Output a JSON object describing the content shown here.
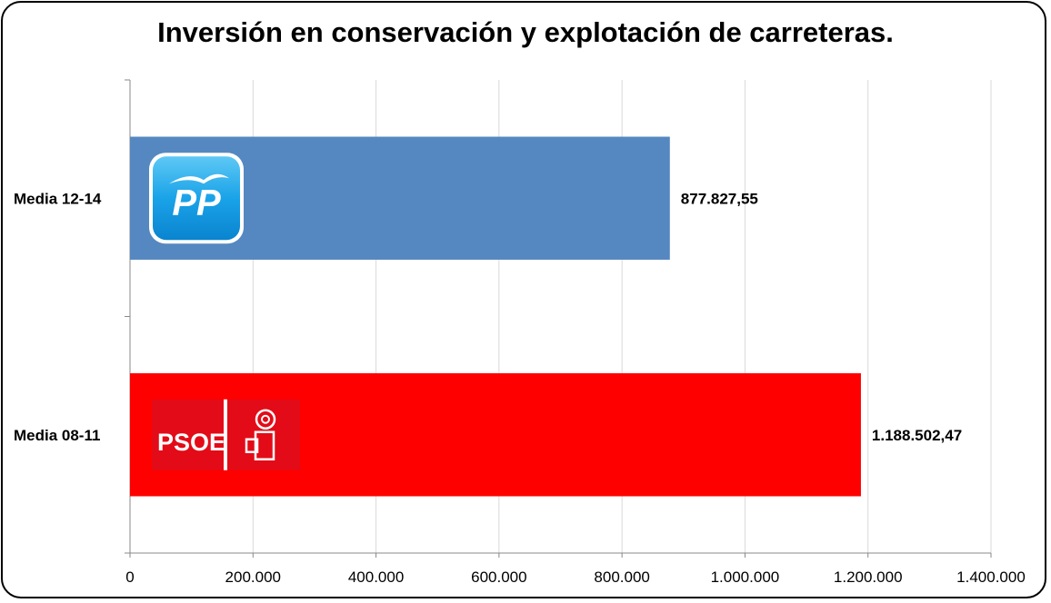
{
  "title": "Inversión en conservación y explotación de carreteras.",
  "chart_data": {
    "type": "bar",
    "orientation": "horizontal",
    "title": "Inversión en conservación y explotación de carreteras.",
    "categories": [
      "Media 12-14",
      "Media 08-11"
    ],
    "values": [
      877827.55,
      1188502.47
    ],
    "value_labels": [
      "877.827,55",
      "1.188.502,47"
    ],
    "bar_colors": [
      "#5588c0",
      "#ff0000"
    ],
    "logos": [
      "PP",
      "PSOE"
    ],
    "xlim": [
      0,
      1400000
    ],
    "xticks": [
      0,
      200000,
      400000,
      600000,
      800000,
      1000000,
      1200000,
      1400000
    ],
    "xtick_labels": [
      "0",
      "200.000",
      "400.000",
      "600.000",
      "800.000",
      "1.000.000",
      "1.200.000",
      "1.400.000"
    ],
    "grid": true,
    "xlabel": "",
    "ylabel": ""
  }
}
